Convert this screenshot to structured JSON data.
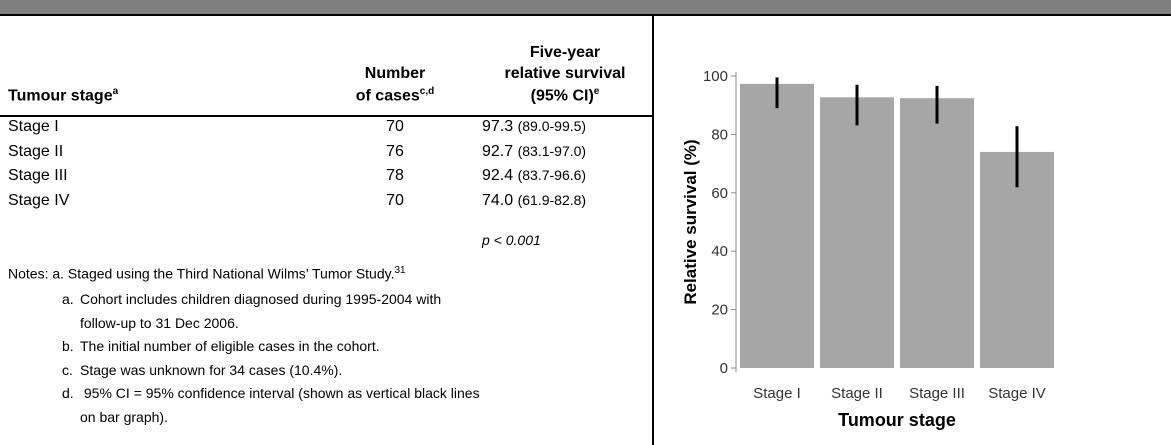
{
  "table": {
    "headers": [
      {
        "lines": [
          "Tumour stage"
        ],
        "sup": "a"
      },
      {
        "lines": [
          "Number",
          "of cases"
        ],
        "sup": "c,d"
      },
      {
        "lines": [
          "Five-year",
          "relative survival",
          "(95% CI)"
        ],
        "sup": "e"
      }
    ],
    "rows": [
      [
        "Stage I",
        "70",
        "97.3",
        "(89.0-99.5)"
      ],
      [
        "Stage II",
        "76",
        "92.7",
        "(83.1-97.0)"
      ],
      [
        "Stage III",
        "78",
        "92.4",
        "(83.7-96.6)"
      ],
      [
        "Stage IV",
        "70",
        "74.0",
        "(61.9-82.8)"
      ]
    ],
    "p_value": "p < 0.001"
  },
  "notes": {
    "label": "Notes:",
    "first": "a. Staged using the Third National Wilms’ Tumor Study.",
    "first_ref": "31",
    "items": [
      {
        "letter": "a.",
        "lines": [
          "Cohort includes children diagnosed during 1995-2004 with",
          "follow-up to 31 Dec 2006."
        ]
      },
      {
        "letter": "b.",
        "lines": [
          "The initial number of eligible cases in the cohort."
        ]
      },
      {
        "letter": "c.",
        "lines": [
          "Stage was unknown for 34 cases (10.4%)."
        ]
      },
      {
        "letter": "d.",
        "lines": [
          " 95% CI = 95% confidence interval (shown as vertical black lines",
          "on bar graph)."
        ]
      }
    ]
  },
  "chart_data": {
    "type": "bar",
    "categories": [
      "Stage I",
      "Stage II",
      "Stage III",
      "Stage IV"
    ],
    "values": [
      97.3,
      92.7,
      92.4,
      74.0
    ],
    "ci_lower": [
      89.0,
      83.1,
      83.7,
      61.9
    ],
    "ci_upper": [
      99.5,
      97.0,
      96.6,
      82.8
    ],
    "color": "#a6a6a6",
    "error_color": "#000000",
    "ylim": [
      0,
      100
    ],
    "yticks": [
      0,
      20,
      40,
      60,
      80,
      100
    ],
    "xlabel": "Tumour stage",
    "ylabel": "Relative survival (%)"
  }
}
